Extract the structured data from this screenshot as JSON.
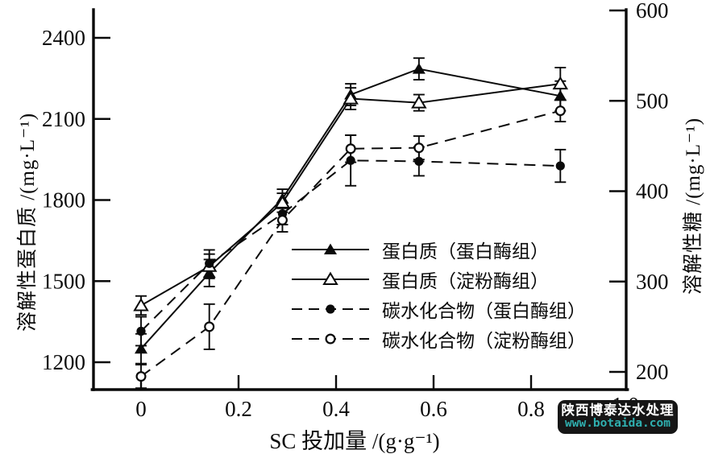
{
  "chart_data": {
    "type": "line",
    "x": [
      0,
      0.14,
      0.29,
      0.43,
      0.57,
      0.86
    ],
    "series": [
      {
        "name": "蛋白质（蛋白酶组）",
        "axis": "left",
        "marker": "filled-triangle",
        "line": "solid",
        "values": [
          1250,
          1530,
          1805,
          2190,
          2285,
          2185
        ],
        "errors": [
          55,
          50,
          35,
          40,
          40,
          55
        ]
      },
      {
        "name": "蛋白质（淀粉酶组）",
        "axis": "left",
        "marker": "open-triangle",
        "line": "solid",
        "values": [
          1410,
          1555,
          1790,
          2175,
          2160,
          2230
        ],
        "errors": [
          35,
          45,
          35,
          40,
          30,
          60
        ]
      },
      {
        "name": "碳水化合物（蛋白酶组）",
        "axis": "right",
        "marker": "filled-circle",
        "line": "dashed",
        "values": [
          245,
          320,
          375,
          434,
          433,
          428
        ],
        "errors": [
          16,
          15,
          12,
          28,
          16,
          18
        ]
      },
      {
        "name": "碳水化合物（淀粉酶组）",
        "axis": "right",
        "marker": "open-circle",
        "line": "dashed",
        "values": [
          195,
          250,
          368,
          447,
          448,
          489
        ],
        "errors": [
          13,
          25,
          13,
          15,
          13,
          12
        ]
      }
    ],
    "x_axis": {
      "label": "SC 投加量 /(g·g⁻¹)",
      "ticks": [
        "0",
        "0.2",
        "0.4",
        "0.6",
        "0.8"
      ],
      "tick_values": [
        0,
        0.2,
        0.4,
        0.6,
        0.8
      ],
      "occluded_tick_label": "1.0",
      "occluded_tick_value": 1.0
    },
    "left_axis": {
      "label": "溶解性蛋白质 /(mg·L⁻¹)",
      "ticks": [
        1200,
        1500,
        1800,
        2100,
        2400
      ],
      "range": [
        1100,
        2505
      ]
    },
    "right_axis": {
      "label": "溶解性糖 /(mg·L⁻¹)",
      "ticks": [
        200,
        300,
        400,
        500,
        600
      ],
      "range": [
        180,
        600
      ]
    },
    "grid": "off",
    "legend_position": "inside-lower-right",
    "colors": {
      "plot": "#0a0a0a",
      "background": "#ffffff"
    }
  },
  "watermark": {
    "line1": "陕西博泰达水处理",
    "line2": "www.botaida.com",
    "background": "#161616",
    "text_color": "#ffffff",
    "url_color": "#2fafaf"
  }
}
